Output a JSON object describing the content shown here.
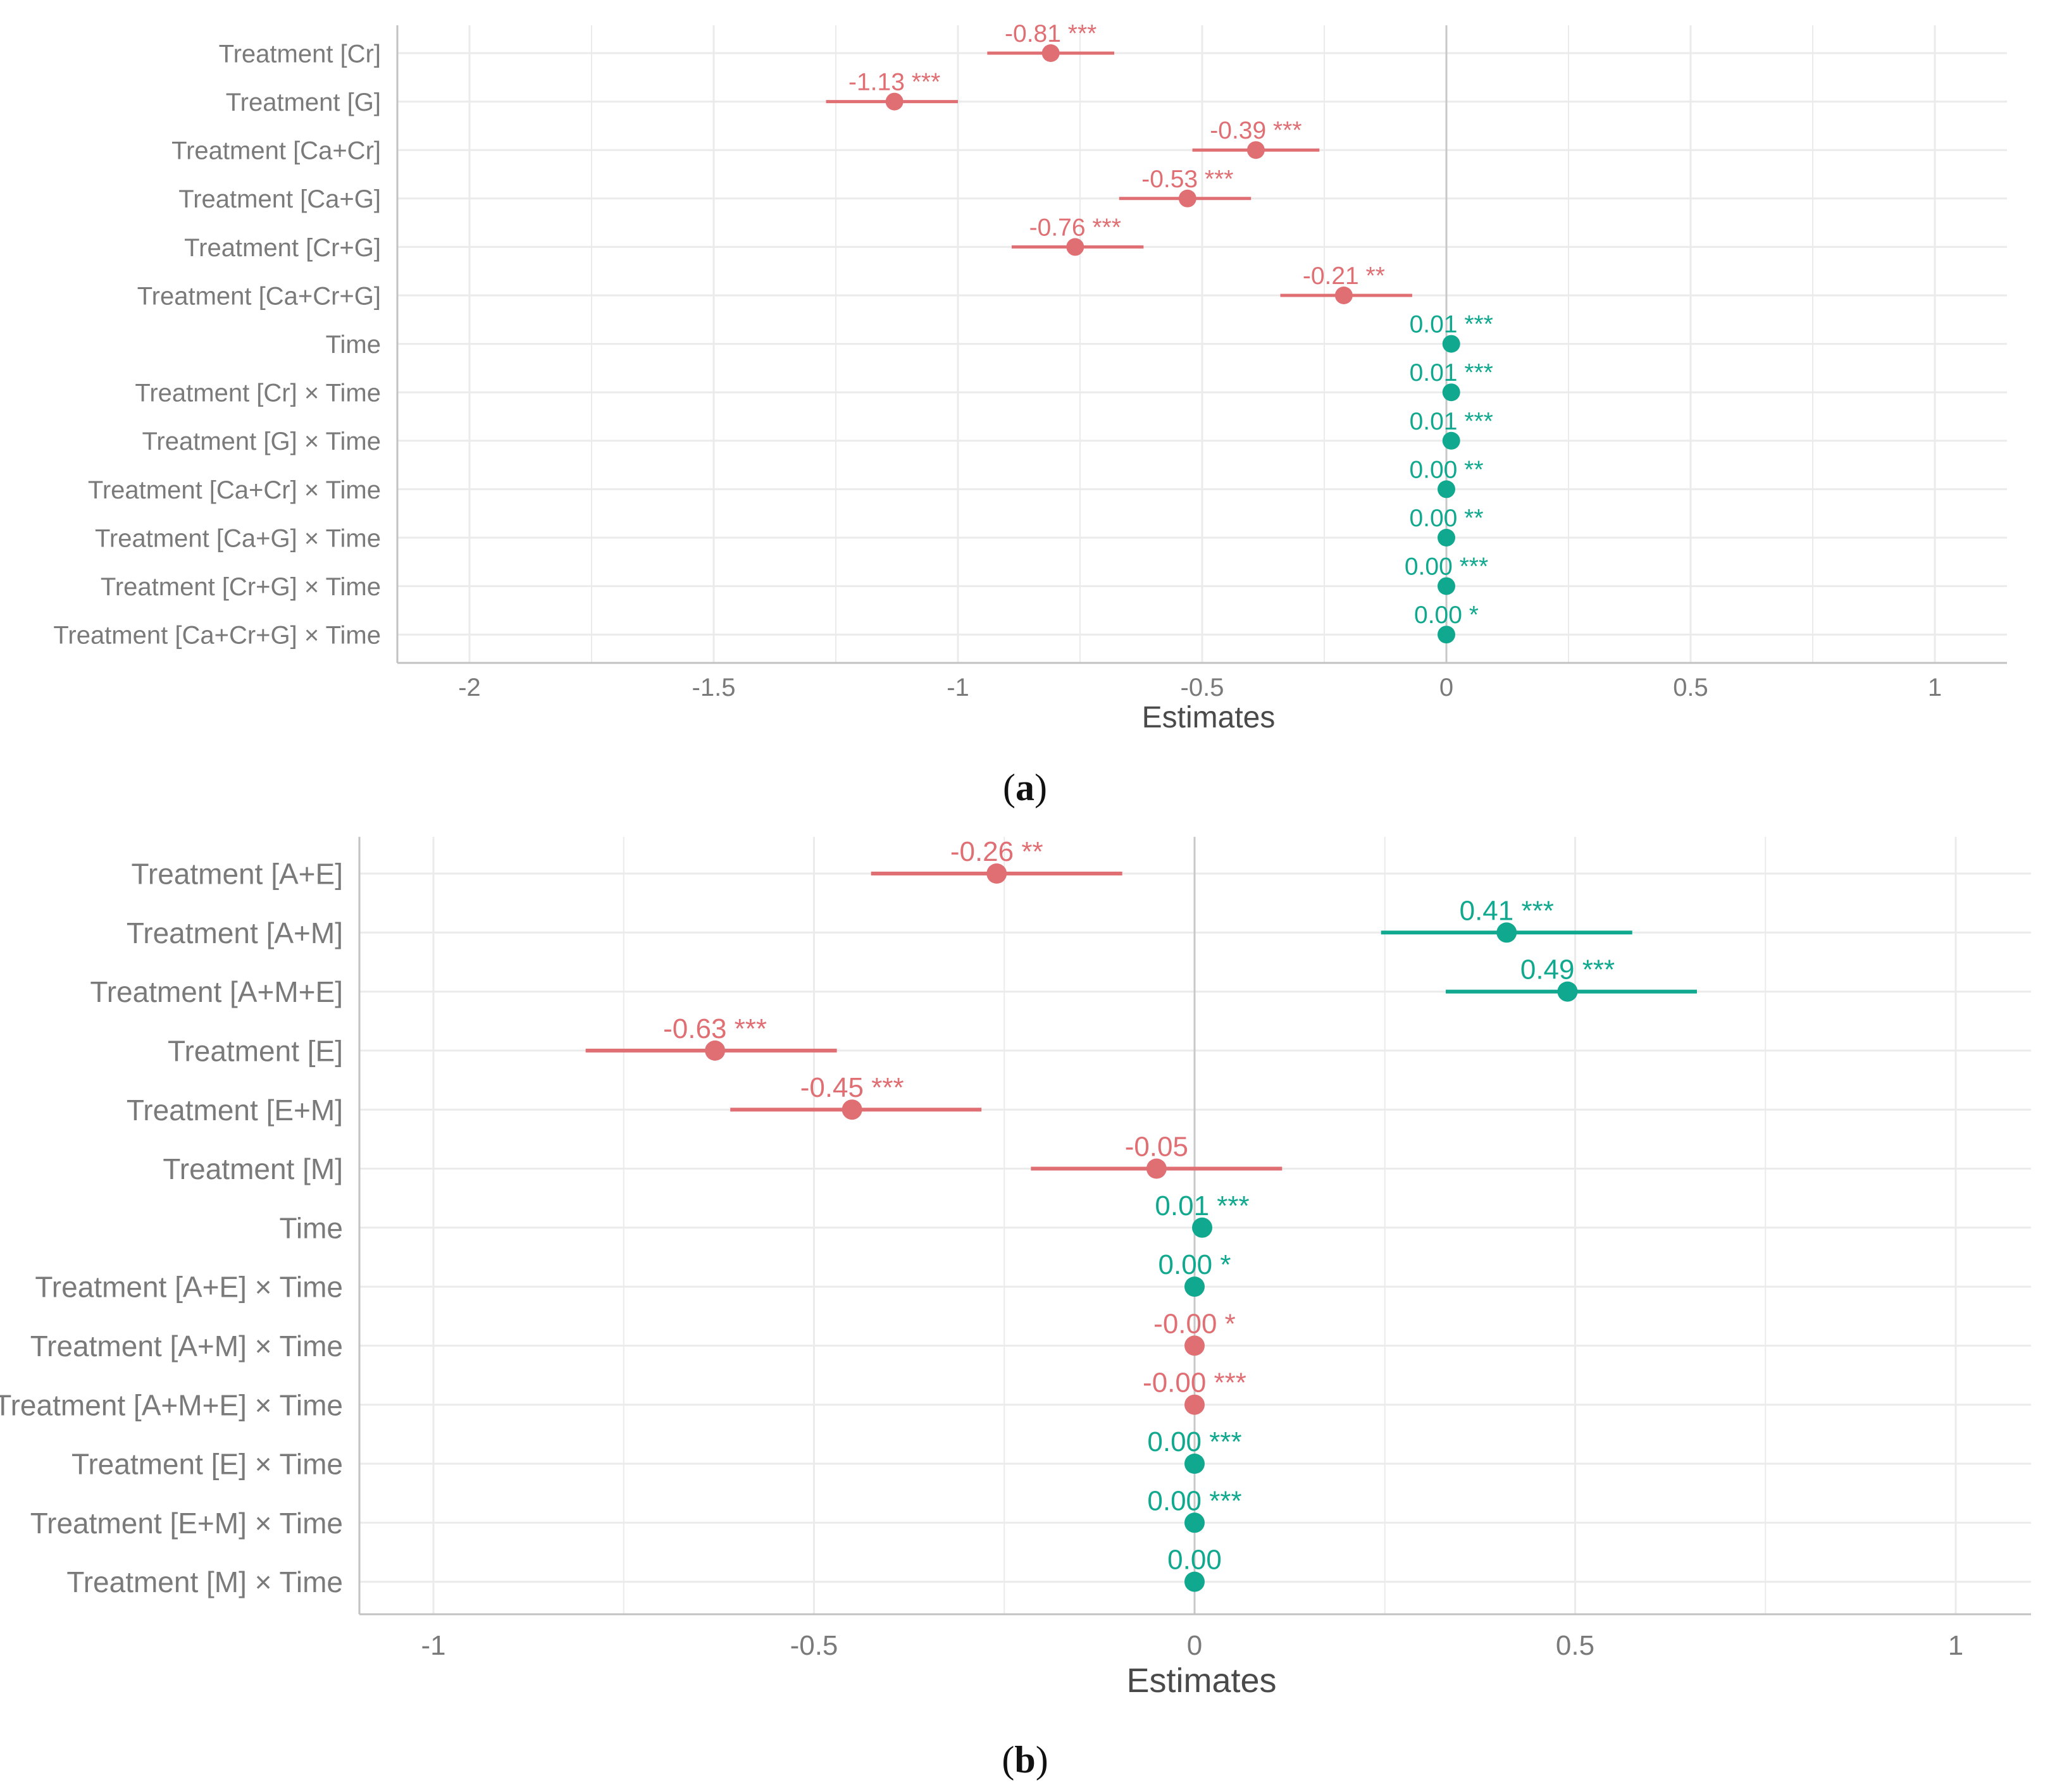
{
  "colors": {
    "negative": "#e06f74",
    "positive": "#10a88e",
    "grid": "#ebebeb",
    "zero_line": "#c8c8c8",
    "axis_line": "#c2c2c2",
    "label_text": "#7a7a7a",
    "axis_title_text": "#4a4a4a",
    "caption_text": "#111111"
  },
  "chart_data": [
    {
      "type": "forest",
      "panel_label": "(a)",
      "caption": {
        "open": "(",
        "letter": "a",
        "close": ")"
      },
      "xlabel": "Estimates",
      "xlim": [
        -2.15,
        1.15
      ],
      "xticks": [
        -2,
        -1.5,
        -1,
        -0.5,
        0,
        0.5,
        1
      ],
      "xtick_labels": [
        "-2",
        "-1.5",
        "-1",
        "-0.5",
        "0",
        "0.5",
        "1"
      ],
      "rows": [
        {
          "term": "Treatment [Cr]",
          "estimate": -0.81,
          "ci": [
            -0.94,
            -0.68
          ],
          "label": "-0.81 ***",
          "sign": "negative"
        },
        {
          "term": "Treatment [G]",
          "estimate": -1.13,
          "ci": [
            -1.27,
            -1.0
          ],
          "label": "-1.13 ***",
          "sign": "negative"
        },
        {
          "term": "Treatment [Ca+Cr]",
          "estimate": -0.39,
          "ci": [
            -0.52,
            -0.26
          ],
          "label": "-0.39 ***",
          "sign": "negative"
        },
        {
          "term": "Treatment [Ca+G]",
          "estimate": -0.53,
          "ci": [
            -0.67,
            -0.4
          ],
          "label": "-0.53 ***",
          "sign": "negative"
        },
        {
          "term": "Treatment [Cr+G]",
          "estimate": -0.76,
          "ci": [
            -0.89,
            -0.62
          ],
          "label": "-0.76 ***",
          "sign": "negative"
        },
        {
          "term": "Treatment [Ca+Cr+G]",
          "estimate": -0.21,
          "ci": [
            -0.34,
            -0.07
          ],
          "label": "-0.21 **",
          "sign": "negative"
        },
        {
          "term": "Time",
          "estimate": 0.01,
          "ci": [
            0.01,
            0.01
          ],
          "label": "0.01 ***",
          "sign": "positive"
        },
        {
          "term": "Treatment [Cr] × Time",
          "estimate": 0.01,
          "ci": [
            0.01,
            0.01
          ],
          "label": "0.01 ***",
          "sign": "positive"
        },
        {
          "term": "Treatment [G] × Time",
          "estimate": 0.01,
          "ci": [
            0.01,
            0.01
          ],
          "label": "0.01 ***",
          "sign": "positive"
        },
        {
          "term": "Treatment [Ca+Cr] × Time",
          "estimate": 0.0,
          "ci": [
            0.0,
            0.0
          ],
          "label": "0.00 **",
          "sign": "positive"
        },
        {
          "term": "Treatment [Ca+G] × Time",
          "estimate": 0.0,
          "ci": [
            0.0,
            0.0
          ],
          "label": "0.00 **",
          "sign": "positive"
        },
        {
          "term": "Treatment [Cr+G] × Time",
          "estimate": 0.0,
          "ci": [
            0.0,
            0.0
          ],
          "label": "0.00 ***",
          "sign": "positive"
        },
        {
          "term": "Treatment [Ca+Cr+G] × Time",
          "estimate": 0.0,
          "ci": [
            0.0,
            0.0
          ],
          "label": "0.00 *",
          "sign": "positive"
        }
      ]
    },
    {
      "type": "forest",
      "panel_label": "(b)",
      "caption": {
        "open": "(",
        "letter": "b",
        "close": ")"
      },
      "xlabel": "Estimates",
      "xlim": [
        -1.1,
        1.1
      ],
      "xticks": [
        -1,
        -0.5,
        0,
        0.5,
        1
      ],
      "xtick_labels": [
        "-1",
        "-0.5",
        "0",
        "0.5",
        "1"
      ],
      "rows": [
        {
          "term": "Treatment [A+E]",
          "estimate": -0.26,
          "ci": [
            -0.425,
            -0.095
          ],
          "label": "-0.26 **",
          "sign": "negative"
        },
        {
          "term": "Treatment [A+M]",
          "estimate": 0.41,
          "ci": [
            0.245,
            0.575
          ],
          "label": "0.41 ***",
          "sign": "positive"
        },
        {
          "term": "Treatment [A+M+E]",
          "estimate": 0.49,
          "ci": [
            0.33,
            0.66
          ],
          "label": "0.49 ***",
          "sign": "positive"
        },
        {
          "term": "Treatment [E]",
          "estimate": -0.63,
          "ci": [
            -0.8,
            -0.47
          ],
          "label": "-0.63 ***",
          "sign": "negative"
        },
        {
          "term": "Treatment [E+M]",
          "estimate": -0.45,
          "ci": [
            -0.61,
            -0.28
          ],
          "label": "-0.45 ***",
          "sign": "negative"
        },
        {
          "term": "Treatment [M]",
          "estimate": -0.05,
          "ci": [
            -0.215,
            0.115
          ],
          "label": "-0.05",
          "sign": "negative"
        },
        {
          "term": "Time",
          "estimate": 0.01,
          "ci": [
            0.01,
            0.01
          ],
          "label": "0.01 ***",
          "sign": "positive"
        },
        {
          "term": "Treatment [A+E] × Time",
          "estimate": 0.0,
          "ci": [
            0.0,
            0.0
          ],
          "label": "0.00 *",
          "sign": "positive"
        },
        {
          "term": "Treatment [A+M] × Time",
          "estimate": -0.0,
          "ci": [
            0.0,
            0.0
          ],
          "label": "-0.00 *",
          "sign": "negative"
        },
        {
          "term": "Treatment [A+M+E] × Time",
          "estimate": -0.0,
          "ci": [
            0.0,
            0.0
          ],
          "label": "-0.00 ***",
          "sign": "negative"
        },
        {
          "term": "Treatment [E] × Time",
          "estimate": 0.0,
          "ci": [
            0.0,
            0.0
          ],
          "label": "0.00 ***",
          "sign": "positive"
        },
        {
          "term": "Treatment [E+M] × Time",
          "estimate": 0.0,
          "ci": [
            0.0,
            0.0
          ],
          "label": "0.00 ***",
          "sign": "positive"
        },
        {
          "term": "Treatment [M] × Time",
          "estimate": 0.0,
          "ci": [
            0.0,
            0.0
          ],
          "label": "0.00",
          "sign": "positive"
        }
      ]
    }
  ]
}
